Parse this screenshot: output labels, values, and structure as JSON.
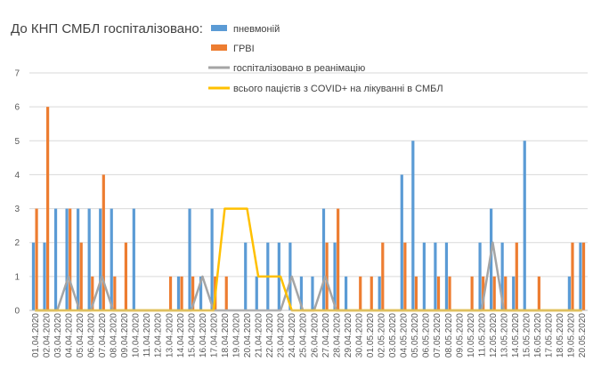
{
  "chart_data": {
    "type": "bar",
    "title": "До КНП СМБЛ госпіталізовано:",
    "xlabel": "",
    "ylabel": "",
    "ylim": [
      0,
      7
    ],
    "yticks": [
      0,
      1,
      2,
      3,
      4,
      5,
      6,
      7
    ],
    "grid": true,
    "legend_position": "top",
    "categories": [
      "01.04.2020",
      "02.04.2020",
      "03.04.2020",
      "04.04.2020",
      "05.04.2020",
      "06.04.2020",
      "07.04.2020",
      "08.04.2020",
      "09.04.2020",
      "10.04.2020",
      "11.04.2020",
      "12.04.2020",
      "13.04.2020",
      "14.04.2020",
      "15.04.2020",
      "16.04.2020",
      "17.04.2020",
      "18.04.2020",
      "19.04.2020",
      "20.04.2020",
      "21.04.2020",
      "22.04.2020",
      "23.04.2020",
      "24.04.2020",
      "25.04.2020",
      "26.04.2020",
      "27.04.2020",
      "28.04.2020",
      "29.04.2020",
      "30.04.2020",
      "01.05.2020",
      "02.05.2020",
      "03.05.2020",
      "04.05.2020",
      "05.05.2020",
      "06.05.2020",
      "07.05.2020",
      "08.05.2020",
      "09.05.2020",
      "10.05.2020",
      "11.05.2020",
      "12.05.2020",
      "13.05.2020",
      "14.05.2020",
      "15.05.2020",
      "16.05.2020",
      "17.05.2020",
      "18.05.2020",
      "19.05.2020",
      "20.05.2020"
    ],
    "tick_labels": [
      "01.04.2020",
      "02.04.2020",
      "03.04.2020",
      "04.04.2020",
      "05.04.2020",
      "06.04.2020",
      "07.04.2020",
      "08.04.2020",
      "09.04.2020",
      "10.04.2020",
      "11.04.2020",
      "12.04.2020",
      "13.04.2020",
      "14.04.2020",
      "15.04.2020",
      "16.04.2020",
      "17.04.2020",
      "18.04.2020",
      "19.04.2020",
      "20.04.2020",
      "21.04.2020",
      "22.04.2020",
      "23.04.2020",
      "24.04.2020",
      "25.04.2020",
      "26.04.2020",
      "27.04.2020",
      "28.04.2020",
      "29.04.2020",
      "30.04.2020",
      "01.05.2020",
      "02.05.2020",
      "03.05.2020",
      "04.05.2020",
      "05.05.2020",
      "06.05.2020",
      "07.05.2020",
      "08.05.2020",
      "09.05.2020",
      "10.05.2020",
      "11.05.2020",
      "12.05.2020",
      "13.05.2020",
      "14.05.2020",
      "15.05.2020",
      "16.05.2020",
      "17.05.2020",
      "18.05.2020",
      "19.05.2020",
      "20.05.2020"
    ],
    "series": [
      {
        "name": "пневмоній",
        "type": "bar",
        "color": "#5b9bd5",
        "values": [
          2,
          2,
          3,
          3,
          3,
          3,
          3,
          3,
          0,
          3,
          0,
          0,
          0,
          1,
          3,
          1,
          3,
          0,
          0,
          2,
          1,
          2,
          2,
          2,
          1,
          1,
          3,
          2,
          1,
          0,
          0,
          1,
          0,
          4,
          5,
          2,
          2,
          2,
          0,
          0,
          2,
          3,
          2,
          1,
          5,
          0,
          0,
          0,
          1,
          2
        ]
      },
      {
        "name": "ГРВІ",
        "type": "bar",
        "color": "#ed7d31",
        "values": [
          3,
          6,
          0,
          3,
          2,
          1,
          4,
          1,
          2,
          0,
          0,
          0,
          1,
          1,
          1,
          0,
          1,
          1,
          0,
          0,
          0,
          0,
          0,
          0,
          0,
          0,
          2,
          3,
          0,
          1,
          1,
          2,
          0,
          2,
          1,
          0,
          1,
          1,
          0,
          1,
          1,
          1,
          1,
          2,
          0,
          1,
          0,
          0,
          2,
          2
        ]
      },
      {
        "name": "госпіталізовано в реанімацію",
        "type": "line",
        "color": "#a5a5a5",
        "values": [
          0,
          0,
          0,
          1,
          0,
          0,
          1,
          0,
          0,
          0,
          0,
          0,
          0,
          0,
          0,
          1,
          0,
          0,
          0,
          0,
          0,
          0,
          0,
          1,
          0,
          0,
          1,
          0,
          0,
          0,
          0,
          0,
          0,
          0,
          0,
          0,
          0,
          0,
          0,
          0,
          0,
          2,
          0,
          0,
          0,
          0,
          0,
          0,
          0,
          0
        ]
      },
      {
        "name": "всього пацієтів з COVID+ на лікуванні в СМБЛ",
        "type": "line",
        "color": "#ffc000",
        "values": [
          0,
          0,
          0,
          0,
          0,
          0,
          0,
          0,
          0,
          0,
          0,
          0,
          0,
          0,
          0,
          0,
          0,
          3,
          3,
          3,
          1,
          1,
          1,
          0,
          0,
          0,
          0,
          0,
          0,
          0,
          0,
          0,
          0,
          0,
          0,
          0,
          0,
          0,
          0,
          0,
          0,
          0,
          0,
          0,
          0,
          0,
          0,
          0,
          0,
          0
        ]
      }
    ]
  }
}
